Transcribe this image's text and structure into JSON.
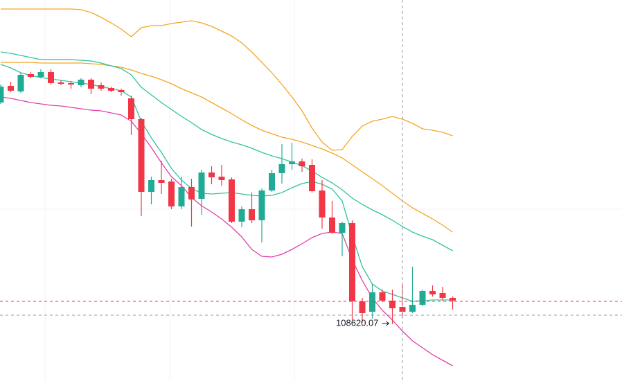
{
  "chart_data": {
    "type": "candlestick",
    "categories": [
      null,
      null,
      null,
      null,
      null,
      null,
      null,
      null,
      null,
      null,
      null,
      null,
      null,
      null,
      null,
      null,
      null,
      null,
      null,
      null,
      null,
      null,
      null,
      null,
      null,
      null,
      null,
      null,
      null,
      null,
      null,
      null,
      null,
      null,
      null,
      null,
      null,
      null,
      null,
      null,
      null,
      null,
      null,
      null,
      null,
      null
    ],
    "open": [
      115020,
      115500,
      115340,
      115840,
      115760,
      115900,
      115600,
      115580,
      115520,
      115680,
      115520,
      115440,
      115380,
      115140,
      114540,
      112440,
      112780,
      112740,
      112020,
      112580,
      112240,
      113000,
      112880,
      112800,
      111580,
      111940,
      111620,
      112480,
      112980,
      113240,
      113320,
      113220,
      112480,
      111700,
      111260,
      111540,
      109280,
      108980,
      109540,
      109300,
      109120,
      108980,
      109180,
      109580,
      109520,
      109380
    ],
    "high": [
      115540,
      115620,
      115880,
      115900,
      115980,
      115980,
      115660,
      115640,
      115720,
      115720,
      115600,
      115480,
      115420,
      115220,
      114580,
      112880,
      113340,
      112820,
      112880,
      112820,
      113080,
      113180,
      113220,
      112860,
      112020,
      112420,
      112540,
      113080,
      113820,
      113860,
      113400,
      113380,
      112780,
      112180,
      111580,
      111620,
      109380,
      109780,
      109620,
      109620,
      109780,
      110280,
      109620,
      109740,
      109700,
      109420
    ],
    "low": [
      114980,
      115320,
      115300,
      115720,
      115720,
      115540,
      115520,
      115420,
      115460,
      115260,
      115360,
      115320,
      115220,
      114080,
      111740,
      112080,
      112380,
      111940,
      111940,
      111440,
      111780,
      112660,
      112620,
      111540,
      111420,
      111540,
      110980,
      112440,
      112680,
      113080,
      113020,
      112420,
      111380,
      111220,
      110580,
      108740,
      108660,
      108780,
      109260,
      108620.07,
      108780,
      108940,
      109140,
      109420,
      109300,
      109040
    ],
    "close": [
      115480,
      115360,
      115820,
      115760,
      115900,
      115580,
      115560,
      115540,
      115680,
      115420,
      115420,
      115360,
      115320,
      114540,
      112440,
      112780,
      112700,
      112020,
      112580,
      112220,
      113000,
      112860,
      112780,
      111580,
      111940,
      111620,
      112480,
      112980,
      113240,
      113320,
      113180,
      112460,
      111700,
      111260,
      111540,
      109280,
      108940,
      109540,
      109300,
      109080,
      108980,
      109180,
      109580,
      109480,
      109380,
      109300
    ],
    "up_color": "#22ab94",
    "down_color": "#f23645",
    "lines": [
      {
        "color": "#f5a623",
        "values": [
          117720,
          117720,
          117720,
          117720,
          117720,
          117720,
          117720,
          117720,
          117700,
          117620,
          117480,
          117320,
          117140,
          116920,
          117180,
          117240,
          117240,
          117300,
          117340,
          117380,
          117320,
          117220,
          117080,
          116940,
          116740,
          116480,
          116180,
          115880,
          115540,
          115180,
          114780,
          114280,
          113880,
          113640,
          113660,
          114040,
          114340,
          114480,
          114540,
          114620,
          114540,
          114420,
          114260,
          114220,
          114160,
          114060
        ]
      },
      {
        "color": "#f5a623",
        "values": [
          116180,
          116180,
          116180,
          116180,
          116160,
          116160,
          116160,
          116160,
          116160,
          116140,
          116120,
          116080,
          116040,
          115960,
          115860,
          115780,
          115680,
          115560,
          115420,
          115300,
          115180,
          115020,
          114860,
          114700,
          114520,
          114360,
          114220,
          114120,
          114020,
          113960,
          113880,
          113780,
          113680,
          113560,
          113420,
          113220,
          113020,
          112820,
          112620,
          112400,
          112180,
          111980,
          111820,
          111660,
          111480,
          111280
        ]
      },
      {
        "color": "#2ec4a0",
        "values": [
          116480,
          116440,
          116380,
          116320,
          116260,
          116260,
          116260,
          116260,
          116240,
          116220,
          116160,
          116080,
          116000,
          115820,
          115460,
          115240,
          115020,
          114820,
          114620,
          114440,
          114240,
          114100,
          113980,
          113880,
          113800,
          113700,
          113580,
          113480,
          113400,
          113300,
          113200,
          113040,
          112860,
          112700,
          112500,
          112260,
          112080,
          111920,
          111780,
          111620,
          111440,
          111280,
          111160,
          111060,
          110900,
          110740
        ]
      },
      {
        "color": "#2ec4a0",
        "values": [
          116120,
          116020,
          115880,
          115800,
          115740,
          115700,
          115660,
          115620,
          115580,
          115540,
          115480,
          115420,
          115360,
          115180,
          114480,
          114000,
          113580,
          113120,
          112780,
          112540,
          112400,
          112380,
          112400,
          112420,
          112380,
          112340,
          112320,
          112340,
          112420,
          112560,
          112680,
          112740,
          112660,
          112520,
          112180,
          111180,
          110280,
          109780,
          109580,
          109480,
          109380,
          109280,
          109300,
          109320,
          109320,
          109320
        ]
      },
      {
        "color": "#e040a8",
        "values": [
          115180,
          115140,
          115080,
          115020,
          114980,
          114940,
          114920,
          114880,
          114840,
          114800,
          114780,
          114720,
          114660,
          114480,
          114120,
          113720,
          113280,
          112880,
          112620,
          112280,
          112040,
          111860,
          111660,
          111420,
          111140,
          110780,
          110580,
          110560,
          110640,
          110780,
          110940,
          111120,
          111240,
          111280,
          111240,
          110480,
          109880,
          109380,
          109020,
          108740,
          108420,
          108140,
          107940,
          107740,
          107580,
          107420
        ]
      }
    ],
    "price_line": 109280,
    "price_line_color": "#f23645",
    "crosshair": {
      "index": 40,
      "value": 108880
    },
    "ylim": [
      106980,
      117980
    ]
  }
}
